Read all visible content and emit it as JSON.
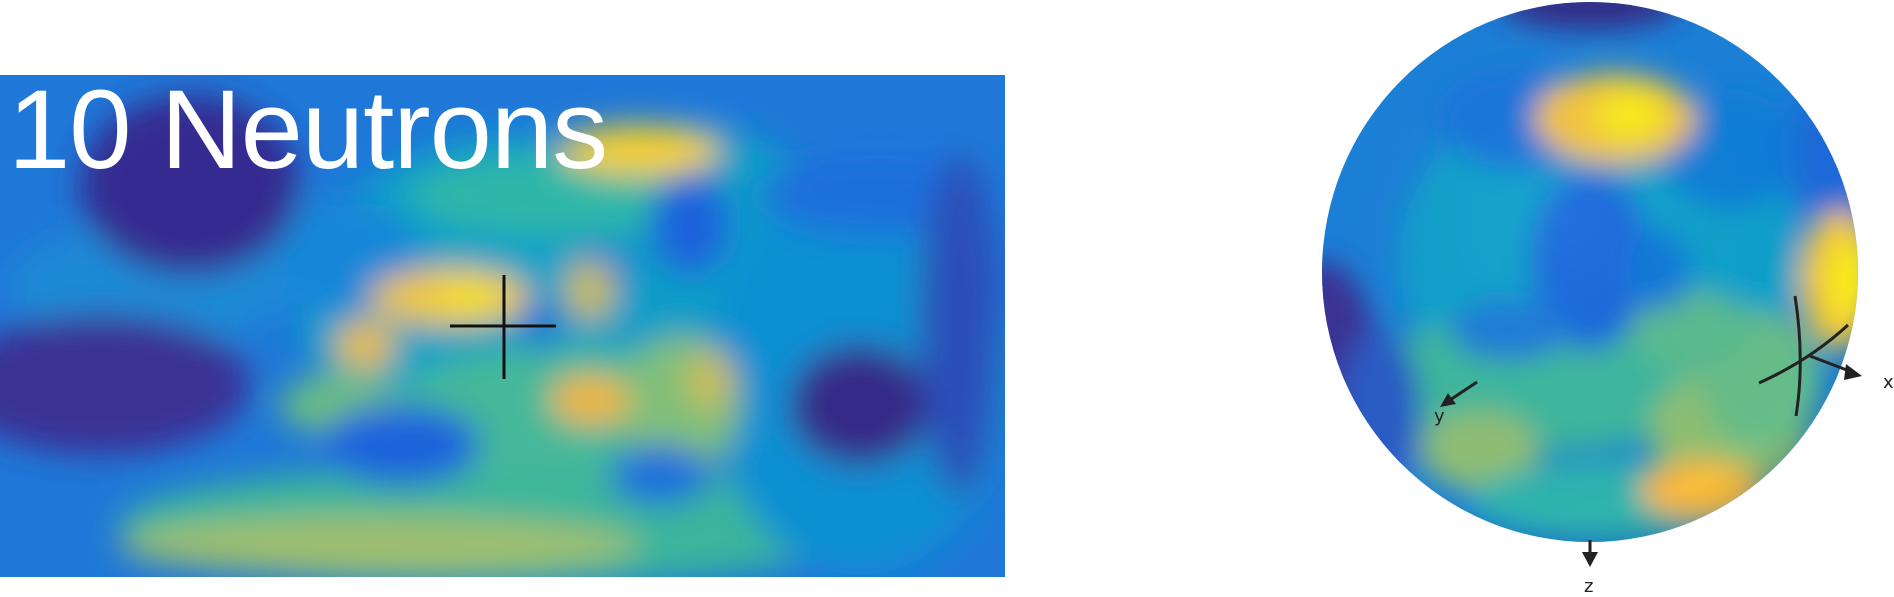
{
  "map": {
    "title": "10 Neutrons",
    "colormap": [
      "#352a87",
      "#0f5cdd",
      "#1481d6",
      "#06a4ca",
      "#2eb7a4",
      "#87bf77",
      "#d1bb59",
      "#fec832",
      "#f9fb0e"
    ],
    "background_color": "#1f78d8"
  },
  "sphere": {
    "axes": [
      {
        "name": "x",
        "label": "x"
      },
      {
        "name": "y",
        "label": "y"
      },
      {
        "name": "z",
        "label": "z"
      }
    ]
  }
}
